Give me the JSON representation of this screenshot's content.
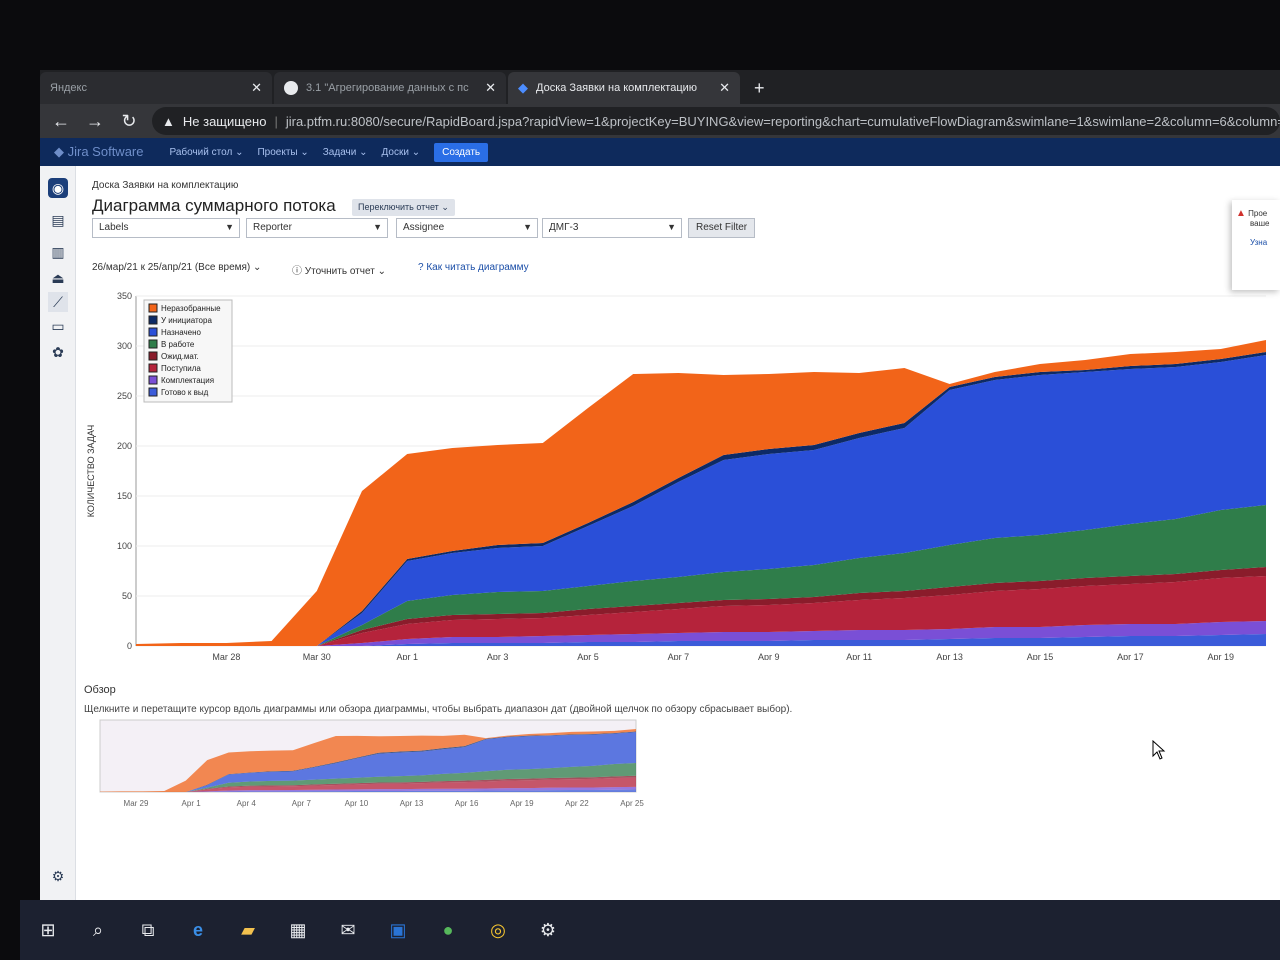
{
  "browser": {
    "tabs": [
      {
        "title": "Яндекс",
        "active": false
      },
      {
        "title": "3.1 \"Агрегирование данных с пс",
        "active": false
      },
      {
        "title": "Доска Заявки на комплектацию",
        "active": true
      }
    ],
    "new_tab": "+",
    "insecure_label": "Не защищено",
    "url": "jira.ptfm.ru:8080/secure/RapidBoard.jspa?rapidView=1&projectKey=BUYING&view=reporting&chart=cumulativeFlowDiagram&swimlane=1&swimlane=2&column=6&column=7"
  },
  "jira_nav": {
    "logo": "Jira Software",
    "items": [
      "Рабочий стол",
      "Проекты",
      "Задачи",
      "Доски"
    ],
    "create": "Создать"
  },
  "page": {
    "breadcrumb": "Доска Заявки на комплектацию",
    "title": "Диаграмма суммарного потока",
    "switch_report": "Переключить отчет",
    "filters": [
      {
        "label": "Labels"
      },
      {
        "label": "Reporter"
      },
      {
        "label": "Assignee"
      },
      {
        "label": "ДМГ-3"
      }
    ],
    "reset_filter": "Reset Filter",
    "date_range": "26/мар/21 к 25/апр/21 (Все время)",
    "refine": "Уточнить отчет",
    "how_to_read": "Как читать диаграмму",
    "overview_label": "Обзор",
    "overview_hint": "Щелкните и перетащите курсор вдоль диаграммы или обзора диаграммы, чтобы выбрать диапазон дат (двойной щелчок по обзору сбрасывает выбор)."
  },
  "notification": {
    "line1": "Прое",
    "line2": "ваше",
    "link": "Узна"
  },
  "chart_data": {
    "type": "area",
    "stacked": true,
    "ylabel": "КОЛИЧЕСТВО ЗАДАЧ",
    "xlabel": "ВРЕМЯ",
    "ylim": [
      0,
      350
    ],
    "yticks": [
      0,
      50,
      100,
      150,
      200,
      250,
      300,
      350
    ],
    "xticks": [
      "Mar 28",
      "Mar 30",
      "Apr 1",
      "Apr 3",
      "Apr 5",
      "Apr 7",
      "Apr 9",
      "Apr 11",
      "Apr 13",
      "Apr 15",
      "Apr 17",
      "Apr 19"
    ],
    "x": [
      "Mar 26",
      "Mar 27",
      "Mar 28",
      "Mar 29",
      "Mar 30",
      "Mar 31",
      "Apr 1",
      "Apr 2",
      "Apr 3",
      "Apr 4",
      "Apr 5",
      "Apr 6",
      "Apr 7",
      "Apr 8",
      "Apr 9",
      "Apr 10",
      "Apr 11",
      "Apr 12",
      "Apr 13",
      "Apr 14",
      "Apr 15",
      "Apr 16",
      "Apr 17",
      "Apr 18",
      "Apr 19",
      "Apr 20"
    ],
    "legend_position": "top-left",
    "series": [
      {
        "name": "Готово к выд",
        "color": "#3b5bd9",
        "values": [
          0,
          0,
          0,
          0,
          0,
          0,
          2,
          3,
          3,
          3,
          4,
          4,
          5,
          5,
          5,
          6,
          6,
          6,
          7,
          8,
          8,
          9,
          10,
          10,
          11,
          12
        ]
      },
      {
        "name": "Комплектация",
        "color": "#7a4fd6",
        "values": [
          0,
          0,
          0,
          0,
          0,
          3,
          5,
          6,
          6,
          7,
          7,
          8,
          8,
          9,
          9,
          9,
          10,
          10,
          10,
          11,
          11,
          12,
          12,
          12,
          13,
          13
        ]
      },
      {
        "name": "Поступила",
        "color": "#b5233b",
        "values": [
          0,
          0,
          0,
          0,
          0,
          10,
          15,
          17,
          18,
          18,
          20,
          22,
          24,
          26,
          27,
          28,
          30,
          32,
          34,
          36,
          38,
          39,
          40,
          42,
          44,
          45
        ]
      },
      {
        "name": "Ожид.мат.",
        "color": "#8a1c2b",
        "values": [
          0,
          0,
          0,
          0,
          0,
          3,
          5,
          5,
          5,
          5,
          6,
          6,
          6,
          6,
          6,
          6,
          7,
          7,
          8,
          8,
          8,
          8,
          8,
          8,
          8,
          9
        ]
      },
      {
        "name": "В работе",
        "color": "#2f7d4a",
        "values": [
          0,
          0,
          0,
          0,
          0,
          5,
          18,
          20,
          22,
          22,
          23,
          25,
          26,
          28,
          30,
          32,
          35,
          38,
          42,
          45,
          46,
          48,
          52,
          55,
          60,
          62
        ]
      },
      {
        "name": "Назначено",
        "color": "#2a4fd8",
        "values": [
          0,
          0,
          0,
          0,
          0,
          12,
          40,
          42,
          44,
          45,
          60,
          75,
          95,
          112,
          115,
          115,
          120,
          125,
          155,
          158,
          160,
          158,
          155,
          152,
          148,
          150
        ]
      },
      {
        "name": "У инициатора",
        "color": "#0d2a66",
        "values": [
          0,
          0,
          0,
          0,
          0,
          2,
          2,
          2,
          3,
          3,
          3,
          4,
          4,
          5,
          5,
          5,
          5,
          5,
          3,
          3,
          3,
          2,
          3,
          3,
          3,
          3
        ]
      },
      {
        "name": "Неразобранные",
        "color": "#f26419",
        "values": [
          2,
          3,
          3,
          5,
          55,
          120,
          105,
          103,
          100,
          100,
          115,
          128,
          105,
          80,
          75,
          73,
          60,
          55,
          3,
          5,
          8,
          10,
          12,
          12,
          10,
          12
        ]
      }
    ]
  },
  "overview_data": {
    "xticks": [
      "Mar 29",
      "Apr 1",
      "Apr 4",
      "Apr 7",
      "Apr 10",
      "Apr 13",
      "Apr 16",
      "Apr 19",
      "Apr 22",
      "Apr 25"
    ]
  }
}
